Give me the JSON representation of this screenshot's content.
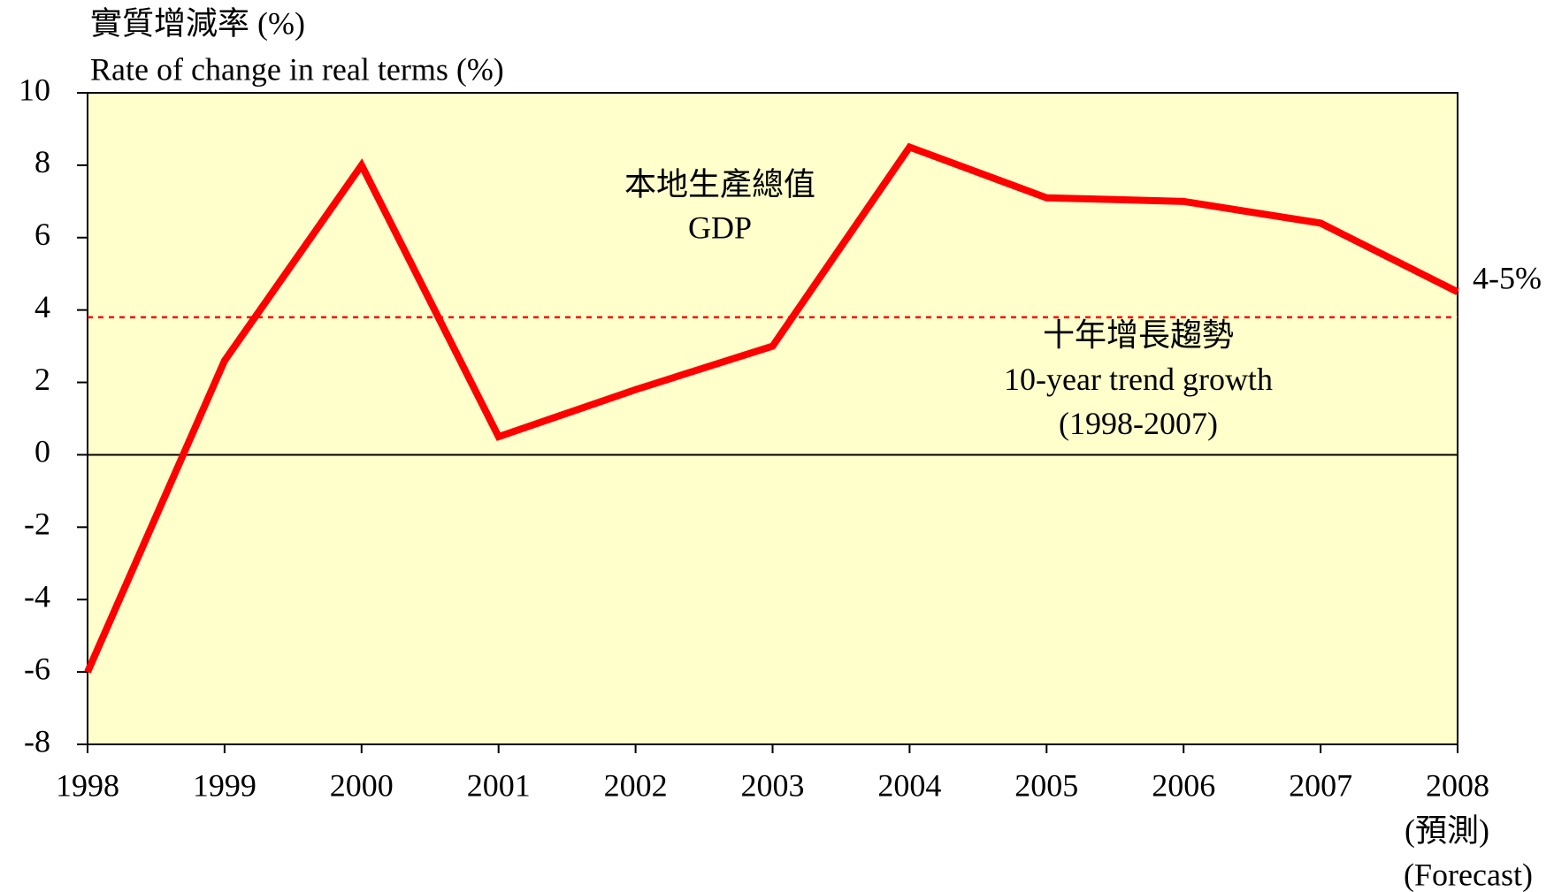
{
  "chart_data": {
    "type": "line",
    "y_axis_title_lines": [
      "實質增減率 (%)",
      "Rate of change in real terms (%)"
    ],
    "x": [
      1998,
      1999,
      2000,
      2001,
      2002,
      2003,
      2004,
      2005,
      2006,
      2007,
      2008
    ],
    "series": [
      {
        "name": "本地生產總值",
        "name_en": "GDP",
        "color": "#ff0000",
        "values": [
          -6.0,
          2.6,
          8.0,
          0.5,
          1.8,
          3.0,
          8.5,
          7.1,
          7.0,
          6.4,
          4.5
        ]
      }
    ],
    "last_point_annotation": "4-5%",
    "forecast_annotation_lines": [
      "(預測)",
      "(Forecast)"
    ],
    "trend": {
      "value": 3.8,
      "color": "#ff0000",
      "label_lines": [
        "十年增長趨勢",
        "10-year  trend growth",
        "(1998-2007)"
      ]
    },
    "xlim": [
      1998,
      2008
    ],
    "xticks": [
      1998,
      1999,
      2000,
      2001,
      2002,
      2003,
      2004,
      2005,
      2006,
      2007,
      2008
    ],
    "ylim": [
      -8,
      10
    ],
    "yticks": [
      -8,
      -6,
      -4,
      -2,
      0,
      2,
      4,
      6,
      8,
      10
    ],
    "background": "#ffffcc"
  }
}
